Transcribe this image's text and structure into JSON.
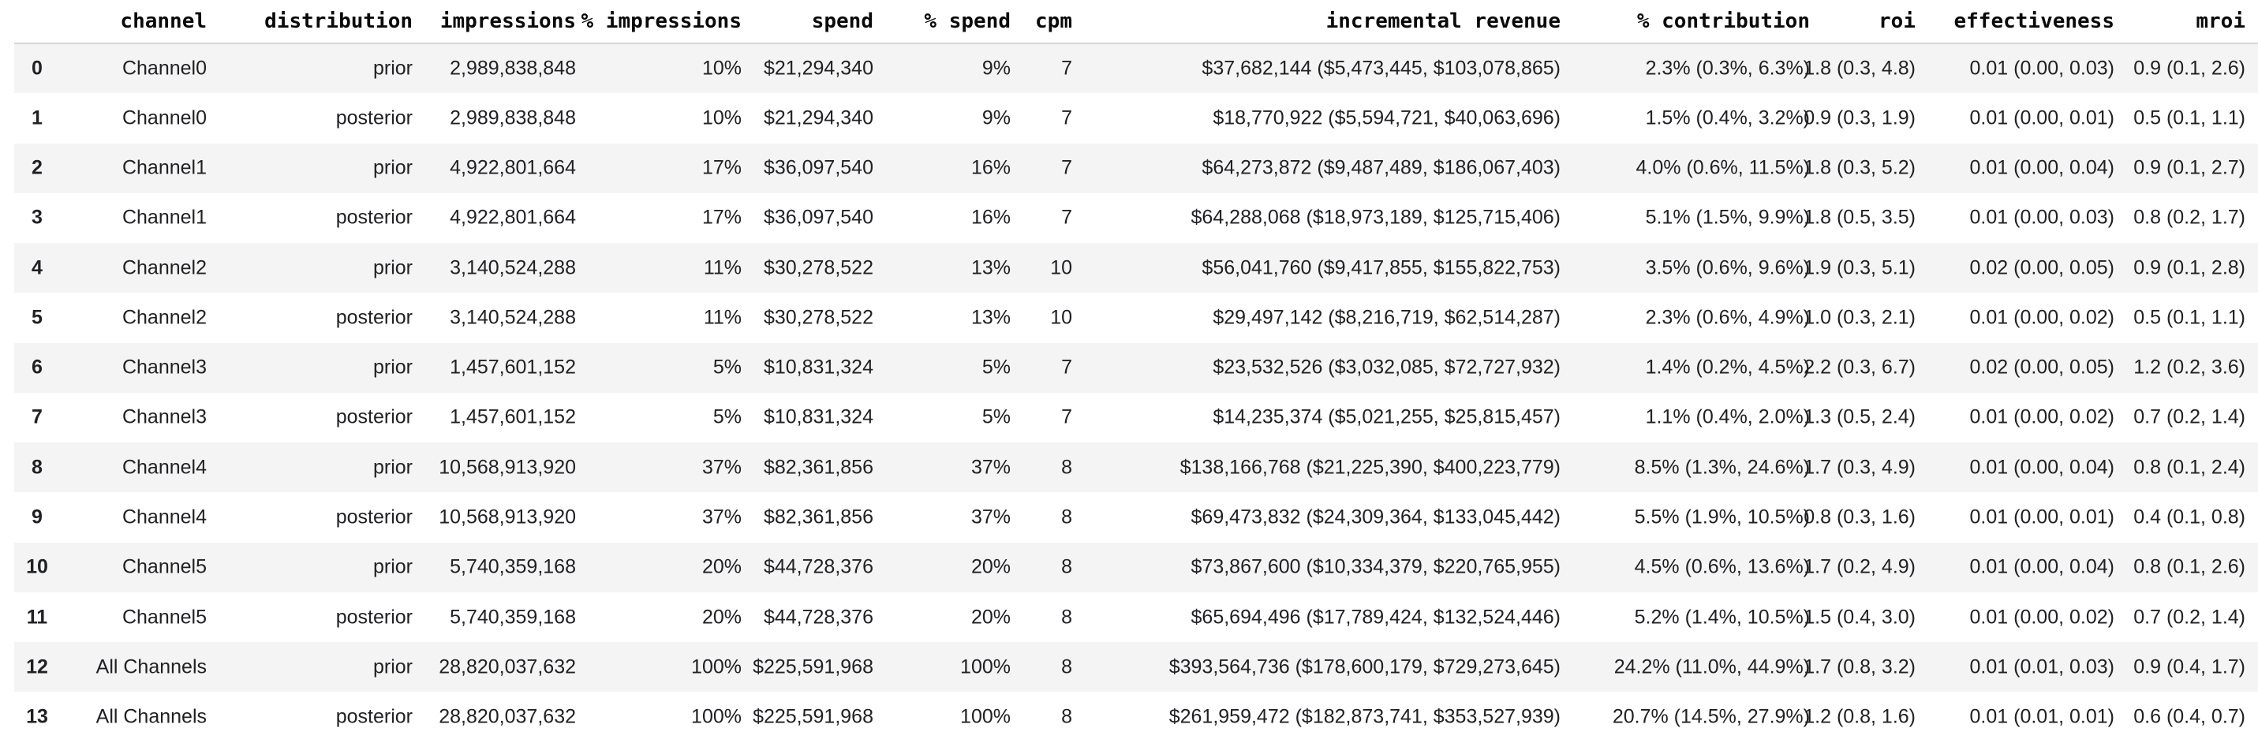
{
  "colors": {
    "background": "#ffffff",
    "stripe_row": "#f4f4f4",
    "header_border": "#d6d6d6",
    "header_text": "#0a0a0a",
    "body_text": "#202124"
  },
  "chart_data": {
    "type": "table",
    "index_header": "",
    "columns": [
      "channel",
      "distribution",
      "impressions",
      "% impressions",
      "spend",
      "% spend",
      "cpm",
      "incremental revenue",
      "% contribution",
      "roi",
      "effectiveness",
      "mroi"
    ],
    "rows": [
      {
        "index": "0",
        "cells": [
          "Channel0",
          "prior",
          "2,989,838,848",
          "10%",
          "$21,294,340",
          "9%",
          "7",
          "$37,682,144 ($5,473,445, $103,078,865)",
          "2.3% (0.3%, 6.3%)",
          "1.8 (0.3, 4.8)",
          "0.01 (0.00, 0.03)",
          "0.9 (0.1, 2.6)"
        ]
      },
      {
        "index": "1",
        "cells": [
          "Channel0",
          "posterior",
          "2,989,838,848",
          "10%",
          "$21,294,340",
          "9%",
          "7",
          "$18,770,922 ($5,594,721, $40,063,696)",
          "1.5% (0.4%, 3.2%)",
          "0.9 (0.3, 1.9)",
          "0.01 (0.00, 0.01)",
          "0.5 (0.1, 1.1)"
        ]
      },
      {
        "index": "2",
        "cells": [
          "Channel1",
          "prior",
          "4,922,801,664",
          "17%",
          "$36,097,540",
          "16%",
          "7",
          "$64,273,872 ($9,487,489, $186,067,403)",
          "4.0% (0.6%, 11.5%)",
          "1.8 (0.3, 5.2)",
          "0.01 (0.00, 0.04)",
          "0.9 (0.1, 2.7)"
        ]
      },
      {
        "index": "3",
        "cells": [
          "Channel1",
          "posterior",
          "4,922,801,664",
          "17%",
          "$36,097,540",
          "16%",
          "7",
          "$64,288,068 ($18,973,189, $125,715,406)",
          "5.1% (1.5%, 9.9%)",
          "1.8 (0.5, 3.5)",
          "0.01 (0.00, 0.03)",
          "0.8 (0.2, 1.7)"
        ]
      },
      {
        "index": "4",
        "cells": [
          "Channel2",
          "prior",
          "3,140,524,288",
          "11%",
          "$30,278,522",
          "13%",
          "10",
          "$56,041,760 ($9,417,855, $155,822,753)",
          "3.5% (0.6%, 9.6%)",
          "1.9 (0.3, 5.1)",
          "0.02 (0.00, 0.05)",
          "0.9 (0.1, 2.8)"
        ]
      },
      {
        "index": "5",
        "cells": [
          "Channel2",
          "posterior",
          "3,140,524,288",
          "11%",
          "$30,278,522",
          "13%",
          "10",
          "$29,497,142 ($8,216,719, $62,514,287)",
          "2.3% (0.6%, 4.9%)",
          "1.0 (0.3, 2.1)",
          "0.01 (0.00, 0.02)",
          "0.5 (0.1, 1.1)"
        ]
      },
      {
        "index": "6",
        "cells": [
          "Channel3",
          "prior",
          "1,457,601,152",
          "5%",
          "$10,831,324",
          "5%",
          "7",
          "$23,532,526 ($3,032,085, $72,727,932)",
          "1.4% (0.2%, 4.5%)",
          "2.2 (0.3, 6.7)",
          "0.02 (0.00, 0.05)",
          "1.2 (0.2, 3.6)"
        ]
      },
      {
        "index": "7",
        "cells": [
          "Channel3",
          "posterior",
          "1,457,601,152",
          "5%",
          "$10,831,324",
          "5%",
          "7",
          "$14,235,374 ($5,021,255, $25,815,457)",
          "1.1% (0.4%, 2.0%)",
          "1.3 (0.5, 2.4)",
          "0.01 (0.00, 0.02)",
          "0.7 (0.2, 1.4)"
        ]
      },
      {
        "index": "8",
        "cells": [
          "Channel4",
          "prior",
          "10,568,913,920",
          "37%",
          "$82,361,856",
          "37%",
          "8",
          "$138,166,768 ($21,225,390, $400,223,779)",
          "8.5% (1.3%, 24.6%)",
          "1.7 (0.3, 4.9)",
          "0.01 (0.00, 0.04)",
          "0.8 (0.1, 2.4)"
        ]
      },
      {
        "index": "9",
        "cells": [
          "Channel4",
          "posterior",
          "10,568,913,920",
          "37%",
          "$82,361,856",
          "37%",
          "8",
          "$69,473,832 ($24,309,364, $133,045,442)",
          "5.5% (1.9%, 10.5%)",
          "0.8 (0.3, 1.6)",
          "0.01 (0.00, 0.01)",
          "0.4 (0.1, 0.8)"
        ]
      },
      {
        "index": "10",
        "cells": [
          "Channel5",
          "prior",
          "5,740,359,168",
          "20%",
          "$44,728,376",
          "20%",
          "8",
          "$73,867,600 ($10,334,379, $220,765,955)",
          "4.5% (0.6%, 13.6%)",
          "1.7 (0.2, 4.9)",
          "0.01 (0.00, 0.04)",
          "0.8 (0.1, 2.6)"
        ]
      },
      {
        "index": "11",
        "cells": [
          "Channel5",
          "posterior",
          "5,740,359,168",
          "20%",
          "$44,728,376",
          "20%",
          "8",
          "$65,694,496 ($17,789,424, $132,524,446)",
          "5.2% (1.4%, 10.5%)",
          "1.5 (0.4, 3.0)",
          "0.01 (0.00, 0.02)",
          "0.7 (0.2, 1.4)"
        ]
      },
      {
        "index": "12",
        "cells": [
          "All Channels",
          "prior",
          "28,820,037,632",
          "100%",
          "$225,591,968",
          "100%",
          "8",
          "$393,564,736 ($178,600,179, $729,273,645)",
          "24.2% (11.0%, 44.9%)",
          "1.7 (0.8, 3.2)",
          "0.01 (0.01, 0.03)",
          "0.9 (0.4, 1.7)"
        ]
      },
      {
        "index": "13",
        "cells": [
          "All Channels",
          "posterior",
          "28,820,037,632",
          "100%",
          "$225,591,968",
          "100%",
          "8",
          "$261,959,472 ($182,873,741, $353,527,939)",
          "20.7% (14.5%, 27.9%)",
          "1.2 (0.8, 1.6)",
          "0.01 (0.01, 0.01)",
          "0.6 (0.4, 0.7)"
        ]
      }
    ]
  }
}
